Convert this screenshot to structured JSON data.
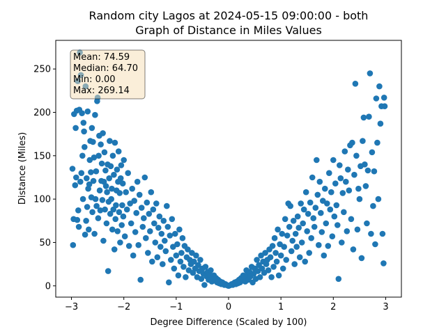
{
  "chart_data": {
    "type": "scatter",
    "title_line1": "Random city Lagos at 2024-05-15 09:00:00  - both",
    "title_line2": "Graph of Distance in Miles Values",
    "xlabel": "Degree Difference (Scaled by 100)",
    "ylabel": "Distance (Miles)",
    "xlim": [
      -3.3,
      3.3
    ],
    "ylim": [
      -13,
      283
    ],
    "xticks": [
      -3,
      -2,
      -1,
      0,
      1,
      2,
      3
    ],
    "yticks": [
      0,
      50,
      100,
      150,
      200,
      250
    ],
    "marker_color": "#1f77b4",
    "grid": false,
    "stats": {
      "mean": "Mean: 74.59",
      "median": "Median: 64.70",
      "min": "Min: 0.00",
      "max": "Max: 269.14"
    },
    "stats_box_color": "#f5deb3",
    "points": [
      [
        -2.98,
        135
      ],
      [
        -2.97,
        47
      ],
      [
        -2.96,
        77
      ],
      [
        -2.95,
        198
      ],
      [
        -2.93,
        116
      ],
      [
        -2.92,
        182
      ],
      [
        -2.91,
        125
      ],
      [
        -2.9,
        202
      ],
      [
        -2.89,
        76
      ],
      [
        -2.88,
        236
      ],
      [
        -2.87,
        87
      ],
      [
        -2.86,
        68
      ],
      [
        -2.85,
        203
      ],
      [
        -2.84,
        269
      ],
      [
        -2.83,
        120
      ],
      [
        -2.82,
        243
      ],
      [
        -2.81,
        130
      ],
      [
        -2.8,
        199
      ],
      [
        -2.79,
        150
      ],
      [
        -2.78,
        100
      ],
      [
        -2.77,
        188
      ],
      [
        -2.76,
        178
      ],
      [
        -2.75,
        160
      ],
      [
        -2.74,
        59
      ],
      [
        -2.73,
        230
      ],
      [
        -2.72,
        75
      ],
      [
        -2.71,
        124
      ],
      [
        -2.7,
        91
      ],
      [
        -2.69,
        201
      ],
      [
        -2.68,
        112
      ],
      [
        -2.67,
        65
      ],
      [
        -2.66,
        117
      ],
      [
        -2.65,
        145
      ],
      [
        -2.64,
        167
      ],
      [
        -2.63,
        131
      ],
      [
        -2.62,
        102
      ],
      [
        -2.61,
        182
      ],
      [
        -2.6,
        85
      ],
      [
        -2.59,
        166
      ],
      [
        -2.58,
        121
      ],
      [
        -2.57,
        148
      ],
      [
        -2.56,
        60
      ],
      [
        -2.55,
        197
      ],
      [
        -2.54,
        100
      ],
      [
        -2.53,
        132
      ],
      [
        -2.52,
        92
      ],
      [
        -2.51,
        213
      ],
      [
        -2.5,
        217
      ],
      [
        -2.49,
        78
      ],
      [
        -2.48,
        150
      ],
      [
        -2.47,
        173
      ],
      [
        -2.46,
        110
      ],
      [
        -2.45,
        87
      ],
      [
        -2.44,
        163
      ],
      [
        -2.43,
        121
      ],
      [
        -2.42,
        141
      ],
      [
        -2.41,
        99
      ],
      [
        -2.4,
        176
      ],
      [
        -2.39,
        52
      ],
      [
        -2.38,
        120
      ],
      [
        -2.37,
        154
      ],
      [
        -2.36,
        88
      ],
      [
        -2.35,
        133
      ],
      [
        -2.34,
        115
      ],
      [
        -2.33,
        72
      ],
      [
        -2.32,
        108
      ],
      [
        -2.31,
        140
      ],
      [
        -2.3,
        17
      ],
      [
        -2.29,
        97
      ],
      [
        -2.28,
        124
      ],
      [
        -2.27,
        167
      ],
      [
        -2.26,
        83
      ],
      [
        -2.25,
        138
      ],
      [
        -2.24,
        100
      ],
      [
        -2.23,
        112
      ],
      [
        -2.22,
        65
      ],
      [
        -2.21,
        150
      ],
      [
        -2.2,
        88
      ],
      [
        -2.19,
        128
      ],
      [
        -2.18,
        42
      ],
      [
        -2.17,
        165
      ],
      [
        -2.16,
        77
      ],
      [
        -2.15,
        93
      ],
      [
        -2.14,
        110
      ],
      [
        -2.13,
        134
      ],
      [
        -2.12,
        63
      ],
      [
        -2.11,
        120
      ],
      [
        -2.1,
        155
      ],
      [
        -2.09,
        85
      ],
      [
        -2.08,
        107
      ],
      [
        -2.07,
        50
      ],
      [
        -2.06,
        124
      ],
      [
        -2.05,
        139
      ],
      [
        -2.04,
        70
      ],
      [
        -2.03,
        93
      ],
      [
        -2.02,
        118
      ],
      [
        -2.01,
        80
      ],
      [
        -2.0,
        145
      ],
      [
        -1.98,
        57
      ],
      [
        -1.96,
        108
      ],
      [
        -1.94,
        88
      ],
      [
        -1.92,
        130
      ],
      [
        -1.9,
        46
      ],
      [
        -1.88,
        95
      ],
      [
        -1.86,
        72
      ],
      [
        -1.84,
        112
      ],
      [
        -1.82,
        35
      ],
      [
        -1.8,
        98
      ],
      [
        -1.78,
        62
      ],
      [
        -1.76,
        84
      ],
      [
        -1.74,
        120
      ],
      [
        -1.72,
        47
      ],
      [
        -1.7,
        105
      ],
      [
        -1.68,
        7
      ],
      [
        -1.66,
        90
      ],
      [
        -1.64,
        68
      ],
      [
        -1.62,
        78
      ],
      [
        -1.6,
        125
      ],
      [
        -1.58,
        55
      ],
      [
        -1.56,
        96
      ],
      [
        -1.54,
        38
      ],
      [
        -1.52,
        83
      ],
      [
        -1.5,
        63
      ],
      [
        -1.48,
        108
      ],
      [
        -1.46,
        28
      ],
      [
        -1.44,
        88
      ],
      [
        -1.42,
        72
      ],
      [
        -1.4,
        50
      ],
      [
        -1.38,
        95
      ],
      [
        -1.36,
        33
      ],
      [
        -1.34,
        67
      ],
      [
        -1.32,
        80
      ],
      [
        -1.3,
        45
      ],
      [
        -1.28,
        60
      ],
      [
        -1.26,
        25
      ],
      [
        -1.24,
        75
      ],
      [
        -1.22,
        52
      ],
      [
        -1.2,
        40
      ],
      [
        -1.18,
        92
      ],
      [
        -1.16,
        68
      ],
      [
        -1.14,
        4
      ],
      [
        -1.12,
        58
      ],
      [
        -1.1,
        30
      ],
      [
        -1.08,
        77
      ],
      [
        -1.06,
        45
      ],
      [
        -1.04,
        20
      ],
      [
        -1.02,
        60
      ],
      [
        -1.0,
        35
      ],
      [
        -0.98,
        48
      ],
      [
        -0.96,
        12
      ],
      [
        -0.94,
        65
      ],
      [
        -0.92,
        28
      ],
      [
        -0.9,
        38
      ],
      [
        -0.88,
        55
      ],
      [
        -0.86,
        22
      ],
      [
        -0.84,
        46
      ],
      [
        -0.82,
        10
      ],
      [
        -0.8,
        33
      ],
      [
        -0.78,
        42
      ],
      [
        -0.76,
        18
      ],
      [
        -0.74,
        30
      ],
      [
        -0.72,
        25
      ],
      [
        -0.7,
        38
      ],
      [
        -0.68,
        15
      ],
      [
        -0.66,
        28
      ],
      [
        -0.64,
        20
      ],
      [
        -0.62,
        35
      ],
      [
        -0.6,
        10
      ],
      [
        -0.58,
        24
      ],
      [
        -0.56,
        17
      ],
      [
        -0.54,
        30
      ],
      [
        -0.52,
        8
      ],
      [
        -0.5,
        20
      ],
      [
        -0.48,
        14
      ],
      [
        -0.46,
        1
      ],
      [
        -0.44,
        22
      ],
      [
        -0.42,
        11
      ],
      [
        -0.4,
        16
      ],
      [
        -0.38,
        7
      ],
      [
        -0.36,
        13
      ],
      [
        -0.34,
        18
      ],
      [
        -0.32,
        5
      ],
      [
        -0.3,
        10
      ],
      [
        -0.28,
        12
      ],
      [
        -0.26,
        6
      ],
      [
        -0.24,
        9
      ],
      [
        -0.22,
        4
      ],
      [
        -0.2,
        7
      ],
      [
        -0.18,
        3
      ],
      [
        -0.16,
        5
      ],
      [
        -0.14,
        2
      ],
      [
        -0.12,
        4
      ],
      [
        -0.1,
        3
      ],
      [
        -0.08,
        1
      ],
      [
        -0.06,
        2
      ],
      [
        -0.04,
        1
      ],
      [
        -0.02,
        0.5
      ],
      [
        0.0,
        0
      ],
      [
        0.02,
        0.5
      ],
      [
        0.04,
        1
      ],
      [
        0.06,
        2
      ],
      [
        0.08,
        1
      ],
      [
        0.1,
        3
      ],
      [
        0.12,
        4
      ],
      [
        0.14,
        2
      ],
      [
        0.16,
        5
      ],
      [
        0.18,
        3
      ],
      [
        0.2,
        7
      ],
      [
        0.22,
        4
      ],
      [
        0.24,
        9
      ],
      [
        0.26,
        6
      ],
      [
        0.28,
        12
      ],
      [
        0.3,
        10
      ],
      [
        0.32,
        5
      ],
      [
        0.34,
        18
      ],
      [
        0.36,
        13
      ],
      [
        0.38,
        7
      ],
      [
        0.4,
        16
      ],
      [
        0.42,
        11
      ],
      [
        0.44,
        22
      ],
      [
        0.46,
        4
      ],
      [
        0.48,
        14
      ],
      [
        0.5,
        20
      ],
      [
        0.52,
        8
      ],
      [
        0.54,
        30
      ],
      [
        0.56,
        17
      ],
      [
        0.58,
        24
      ],
      [
        0.6,
        10
      ],
      [
        0.62,
        35
      ],
      [
        0.64,
        20
      ],
      [
        0.66,
        28
      ],
      [
        0.68,
        15
      ],
      [
        0.7,
        38
      ],
      [
        0.72,
        25
      ],
      [
        0.74,
        30
      ],
      [
        0.76,
        18
      ],
      [
        0.78,
        42
      ],
      [
        0.8,
        33
      ],
      [
        0.82,
        10
      ],
      [
        0.84,
        46
      ],
      [
        0.86,
        22
      ],
      [
        0.88,
        55
      ],
      [
        0.9,
        38
      ],
      [
        0.92,
        28
      ],
      [
        0.94,
        65
      ],
      [
        0.96,
        12
      ],
      [
        0.98,
        48
      ],
      [
        1.0,
        35
      ],
      [
        1.02,
        60
      ],
      [
        1.04,
        20
      ],
      [
        1.06,
        45
      ],
      [
        1.08,
        77
      ],
      [
        1.1,
        30
      ],
      [
        1.12,
        58
      ],
      [
        1.14,
        95
      ],
      [
        1.16,
        68
      ],
      [
        1.18,
        92
      ],
      [
        1.2,
        40
      ],
      [
        1.22,
        52
      ],
      [
        1.24,
        75
      ],
      [
        1.26,
        25
      ],
      [
        1.28,
        60
      ],
      [
        1.3,
        45
      ],
      [
        1.32,
        80
      ],
      [
        1.34,
        67
      ],
      [
        1.36,
        33
      ],
      [
        1.38,
        95
      ],
      [
        1.4,
        50
      ],
      [
        1.42,
        72
      ],
      [
        1.44,
        88
      ],
      [
        1.46,
        28
      ],
      [
        1.48,
        108
      ],
      [
        1.5,
        63
      ],
      [
        1.52,
        83
      ],
      [
        1.54,
        38
      ],
      [
        1.56,
        96
      ],
      [
        1.58,
        55
      ],
      [
        1.6,
        125
      ],
      [
        1.62,
        78
      ],
      [
        1.64,
        68
      ],
      [
        1.66,
        90
      ],
      [
        1.68,
        145
      ],
      [
        1.7,
        105
      ],
      [
        1.72,
        47
      ],
      [
        1.74,
        120
      ],
      [
        1.76,
        84
      ],
      [
        1.78,
        62
      ],
      [
        1.8,
        98
      ],
      [
        1.82,
        35
      ],
      [
        1.84,
        112
      ],
      [
        1.86,
        72
      ],
      [
        1.88,
        95
      ],
      [
        1.9,
        46
      ],
      [
        1.92,
        130
      ],
      [
        1.94,
        88
      ],
      [
        1.96,
        108
      ],
      [
        1.98,
        57
      ],
      [
        2.0,
        145
      ],
      [
        2.02,
        80
      ],
      [
        2.04,
        118
      ],
      [
        2.06,
        93
      ],
      [
        2.08,
        70
      ],
      [
        2.1,
        8
      ],
      [
        2.12,
        139
      ],
      [
        2.14,
        124
      ],
      [
        2.16,
        50
      ],
      [
        2.18,
        107
      ],
      [
        2.2,
        85
      ],
      [
        2.22,
        155
      ],
      [
        2.24,
        120
      ],
      [
        2.26,
        63
      ],
      [
        2.28,
        134
      ],
      [
        2.3,
        110
      ],
      [
        2.32,
        162
      ],
      [
        2.34,
        77
      ],
      [
        2.36,
        165
      ],
      [
        2.38,
        42
      ],
      [
        2.4,
        128
      ],
      [
        2.42,
        233
      ],
      [
        2.44,
        150
      ],
      [
        2.46,
        65
      ],
      [
        2.48,
        112
      ],
      [
        2.5,
        100
      ],
      [
        2.52,
        138
      ],
      [
        2.54,
        32
      ],
      [
        2.56,
        167
      ],
      [
        2.58,
        194
      ],
      [
        2.6,
        140
      ],
      [
        2.62,
        115
      ],
      [
        2.64,
        72
      ],
      [
        2.66,
        133
      ],
      [
        2.68,
        195
      ],
      [
        2.7,
        245
      ],
      [
        2.72,
        60
      ],
      [
        2.74,
        154
      ],
      [
        2.76,
        92
      ],
      [
        2.78,
        132
      ],
      [
        2.8,
        48
      ],
      [
        2.82,
        216
      ],
      [
        2.84,
        165
      ],
      [
        2.86,
        100
      ],
      [
        2.88,
        230
      ],
      [
        2.9,
        187
      ],
      [
        2.92,
        207
      ],
      [
        2.94,
        60
      ],
      [
        2.96,
        26
      ],
      [
        2.97,
        217
      ],
      [
        2.98,
        207
      ]
    ]
  }
}
